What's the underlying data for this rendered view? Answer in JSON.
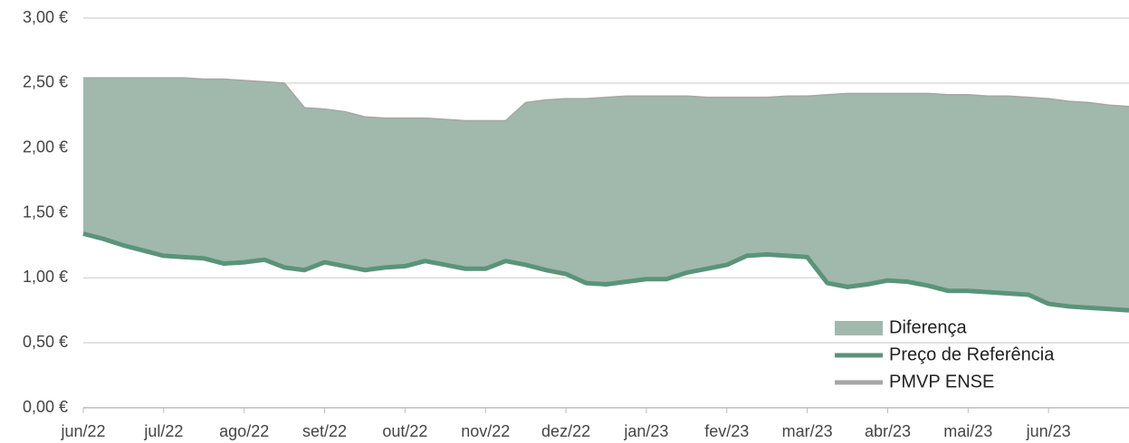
{
  "chart_data": {
    "type": "area",
    "categories": [
      "jun/22",
      null,
      null,
      null,
      "jul/22",
      null,
      null,
      null,
      "ago/22",
      null,
      null,
      null,
      "set/22",
      null,
      null,
      null,
      "out/22",
      null,
      null,
      null,
      "nov/22",
      null,
      null,
      null,
      "dez/22",
      null,
      null,
      null,
      "jan/23",
      null,
      null,
      null,
      "fev/23",
      null,
      null,
      null,
      "mar/23",
      null,
      null,
      null,
      "abr/23",
      null,
      null,
      null,
      "mai/23",
      null,
      null,
      null,
      "jun/23",
      null,
      null,
      null,
      null
    ],
    "series": [
      {
        "name": "Diferença",
        "type": "area",
        "color": "#a1b8ad",
        "values": [
          1.2,
          1.24,
          1.29,
          1.33,
          1.37,
          1.38,
          1.38,
          1.42,
          1.4,
          1.37,
          1.42,
          1.25,
          1.18,
          1.19,
          1.18,
          1.15,
          1.14,
          1.1,
          1.12,
          1.14,
          1.14,
          1.08,
          1.25,
          1.31,
          1.35,
          1.42,
          1.44,
          1.43,
          1.41,
          1.41,
          1.36,
          1.32,
          1.29,
          1.22,
          1.21,
          1.23,
          1.24,
          1.45,
          1.49,
          1.47,
          1.44,
          1.45,
          1.48,
          1.51,
          1.51,
          1.51,
          1.52,
          1.52,
          1.58,
          1.58,
          1.58,
          1.57,
          1.57
        ]
      },
      {
        "name": "Preço de Referência",
        "type": "line",
        "color": "#5a9478",
        "values": [
          1.34,
          1.3,
          1.25,
          1.21,
          1.17,
          1.16,
          1.15,
          1.11,
          1.12,
          1.14,
          1.08,
          1.06,
          1.12,
          1.09,
          1.06,
          1.08,
          1.09,
          1.13,
          1.1,
          1.07,
          1.07,
          1.13,
          1.1,
          1.06,
          1.03,
          0.96,
          0.95,
          0.97,
          0.99,
          0.99,
          1.04,
          1.07,
          1.1,
          1.17,
          1.18,
          1.17,
          1.16,
          0.96,
          0.93,
          0.95,
          0.98,
          0.97,
          0.94,
          0.9,
          0.9,
          0.89,
          0.88,
          0.87,
          0.8,
          0.78,
          0.77,
          0.76,
          0.75
        ]
      },
      {
        "name": "PMVP ENSE",
        "type": "line",
        "color": "#a6a6a6",
        "values": [
          2.54,
          2.54,
          2.54,
          2.54,
          2.54,
          2.54,
          2.53,
          2.53,
          2.52,
          2.51,
          2.5,
          2.31,
          2.3,
          2.28,
          2.24,
          2.23,
          2.23,
          2.23,
          2.22,
          2.21,
          2.21,
          2.21,
          2.35,
          2.37,
          2.38,
          2.38,
          2.39,
          2.4,
          2.4,
          2.4,
          2.4,
          2.39,
          2.39,
          2.39,
          2.39,
          2.4,
          2.4,
          2.41,
          2.42,
          2.42,
          2.42,
          2.42,
          2.42,
          2.41,
          2.41,
          2.4,
          2.4,
          2.39,
          2.38,
          2.36,
          2.35,
          2.33,
          2.32
        ]
      }
    ],
    "ylim": [
      0,
      3
    ],
    "yticks": [
      {
        "value": 0,
        "label": "0,00 €"
      },
      {
        "value": 0.5,
        "label": "0,50 €"
      },
      {
        "value": 1,
        "label": "1,00 €"
      },
      {
        "value": 1.5,
        "label": "1,50 €"
      },
      {
        "value": 2,
        "label": "2,00 €"
      },
      {
        "value": 2.5,
        "label": "2,50 €"
      },
      {
        "value": 3,
        "label": "3,00 €"
      }
    ],
    "grid": true,
    "legend": "bottom-right"
  }
}
